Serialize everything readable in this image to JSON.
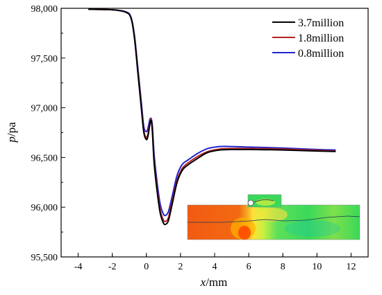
{
  "chart_data": {
    "type": "line",
    "xlabel": {
      "italic": "x",
      "unit": "/mm"
    },
    "ylabel": {
      "italic": "p",
      "unit": "/pa"
    },
    "xlim": [
      -5,
      13
    ],
    "ylim": [
      95500,
      98000
    ],
    "x_ticks": [
      -4,
      -2,
      0,
      2,
      4,
      6,
      8,
      10,
      12
    ],
    "x_tick_labels": [
      "-4",
      "-2",
      "0",
      "2",
      "4",
      "6",
      "8",
      "10",
      "12"
    ],
    "y_ticks": [
      95500,
      96000,
      96500,
      97000,
      97500,
      98000
    ],
    "y_tick_labels": [
      "95,500",
      "96,000",
      "96,500",
      "97,000",
      "97,500",
      "98,000"
    ],
    "legend_position": "top-right",
    "series": [
      {
        "name": "3.7million",
        "color": "#000000",
        "x": [
          -3.4,
          -2.0,
          -1.2,
          -0.9,
          -0.7,
          -0.5,
          -0.3,
          -0.15,
          0.0,
          0.1,
          0.2,
          0.28,
          0.35,
          0.45,
          0.6,
          0.8,
          1.0,
          1.15,
          1.3,
          1.5,
          1.8,
          2.1,
          2.4,
          3.0,
          3.6,
          4.3,
          5.0,
          6.0,
          8.0,
          10.0,
          11.1
        ],
        "values": [
          97990,
          97985,
          97960,
          97900,
          97700,
          97350,
          97000,
          96750,
          96680,
          96720,
          96830,
          96870,
          96760,
          96450,
          96200,
          95950,
          95840,
          95830,
          95870,
          96020,
          96250,
          96370,
          96420,
          96490,
          96550,
          96575,
          96580,
          96580,
          96575,
          96565,
          96560
        ]
      },
      {
        "name": "1.8million",
        "color": "#b22222",
        "x": [
          -3.4,
          -2.0,
          -1.2,
          -0.9,
          -0.7,
          -0.5,
          -0.3,
          -0.15,
          0.0,
          0.1,
          0.2,
          0.28,
          0.35,
          0.45,
          0.6,
          0.8,
          1.0,
          1.15,
          1.3,
          1.5,
          1.8,
          2.1,
          2.4,
          3.0,
          3.6,
          4.3,
          5.0,
          6.0,
          8.0,
          10.0,
          11.1
        ],
        "values": [
          97990,
          97985,
          97960,
          97900,
          97710,
          97370,
          97020,
          96770,
          96700,
          96745,
          96850,
          96880,
          96780,
          96480,
          96230,
          95980,
          95870,
          95860,
          95900,
          96050,
          96270,
          96390,
          96440,
          96510,
          96560,
          96585,
          96590,
          96590,
          96585,
          96572,
          96565
        ]
      },
      {
        "name": "0.8million",
        "color": "#2222cc",
        "x": [
          -3.4,
          -2.0,
          -1.2,
          -0.9,
          -0.7,
          -0.5,
          -0.3,
          -0.15,
          0.0,
          0.1,
          0.2,
          0.28,
          0.35,
          0.45,
          0.6,
          0.8,
          1.0,
          1.15,
          1.3,
          1.5,
          1.8,
          2.1,
          2.4,
          3.0,
          3.6,
          4.3,
          5.0,
          6.0,
          8.0,
          10.0,
          11.1
        ],
        "values": [
          97990,
          97985,
          97965,
          97910,
          97730,
          97400,
          97060,
          96810,
          96760,
          96800,
          96880,
          96890,
          96820,
          96540,
          96290,
          96040,
          95930,
          95920,
          95960,
          96100,
          96320,
          96430,
          96470,
          96540,
          96590,
          96610,
          96610,
          96605,
          96595,
          96580,
          96575
        ]
      }
    ]
  },
  "inset": {
    "description_colors": {
      "inlet": "#f25a12",
      "throat": "#ffee33",
      "outlet": "#33dd55",
      "high": "#ff3300",
      "low": "#19d45a"
    }
  }
}
